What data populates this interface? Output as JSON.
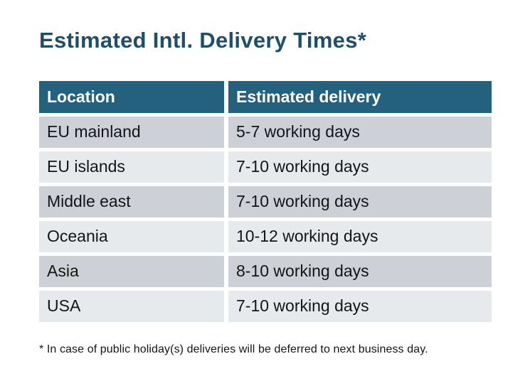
{
  "title": "Estimated Intl. Delivery Times*",
  "table": {
    "headers": [
      "Location",
      "Estimated delivery"
    ],
    "rows": [
      {
        "location": "EU mainland",
        "delivery": "5-7 working days"
      },
      {
        "location": "EU islands",
        "delivery": "7-10 working days"
      },
      {
        "location": "Middle east",
        "delivery": "7-10 working days"
      },
      {
        "location": "Oceania",
        "delivery": "10-12 working days"
      },
      {
        "location": "Asia",
        "delivery": "8-10 working days"
      },
      {
        "location": "USA",
        "delivery": "7-10 working days"
      }
    ]
  },
  "footnote": "* In case of public holiday(s) deliveries will be deferred to next business day.",
  "colors": {
    "teal": "#23617f",
    "title": "#1d4f66",
    "row_dark": "#cdd1d7",
    "row_light": "#e7eaed",
    "text": "#141414"
  }
}
